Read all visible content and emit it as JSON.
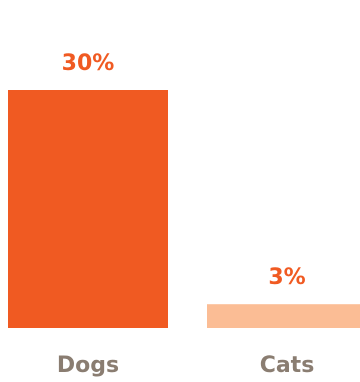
{
  "chart_data": {
    "type": "bar",
    "categories": [
      "Dogs",
      "Cats"
    ],
    "values": [
      30,
      3
    ],
    "value_labels": [
      "30%",
      "3%"
    ],
    "unit": "%",
    "title": "",
    "xlabel": "",
    "ylabel": "",
    "ylim": [
      0,
      30
    ],
    "grid": false,
    "legend": "none",
    "bar_colors": [
      "#f05a22",
      "#fbbd95"
    ],
    "value_label_color": "#f05a22",
    "category_label_color": "#8a7d71"
  }
}
